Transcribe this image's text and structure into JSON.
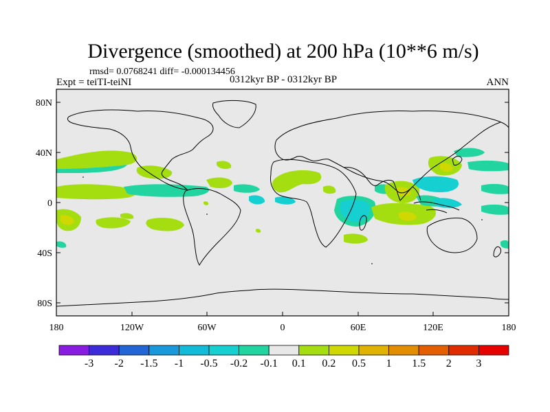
{
  "title": "Divergence (smoothed) at 200 hPa (10**6 m/s)",
  "stats_line": "rmsd= 0.0768241 diff= -0.000134456",
  "experiment": "Expt = teiTI-teiNI",
  "period": "0312kyr BP - 0312kyr BP",
  "season": "ANN",
  "lat_ticks": [
    "80N",
    "40N",
    "0",
    "40S",
    "80S"
  ],
  "lon_ticks": [
    "180",
    "120W",
    "60W",
    "0",
    "60E",
    "120E",
    "180"
  ],
  "colorbar": {
    "labels": [
      "-3",
      "-2",
      "-1.5",
      "-1",
      "-0.5",
      "-0.2",
      "-0.1",
      "0.1",
      "0.2",
      "0.5",
      "1",
      "1.5",
      "2",
      "3"
    ],
    "colors": [
      "#8a1be0",
      "#3c2bd8",
      "#2266d6",
      "#1a98dc",
      "#12bcd8",
      "#16cfd0",
      "#22d4a0",
      "#e8e8e8",
      "#a4de10",
      "#cfd800",
      "#e0b300",
      "#e28e00",
      "#e25e00",
      "#e02a00",
      "#e60000"
    ]
  },
  "colors": {
    "background_field": "#e8e8e8",
    "coast": "#000000"
  }
}
